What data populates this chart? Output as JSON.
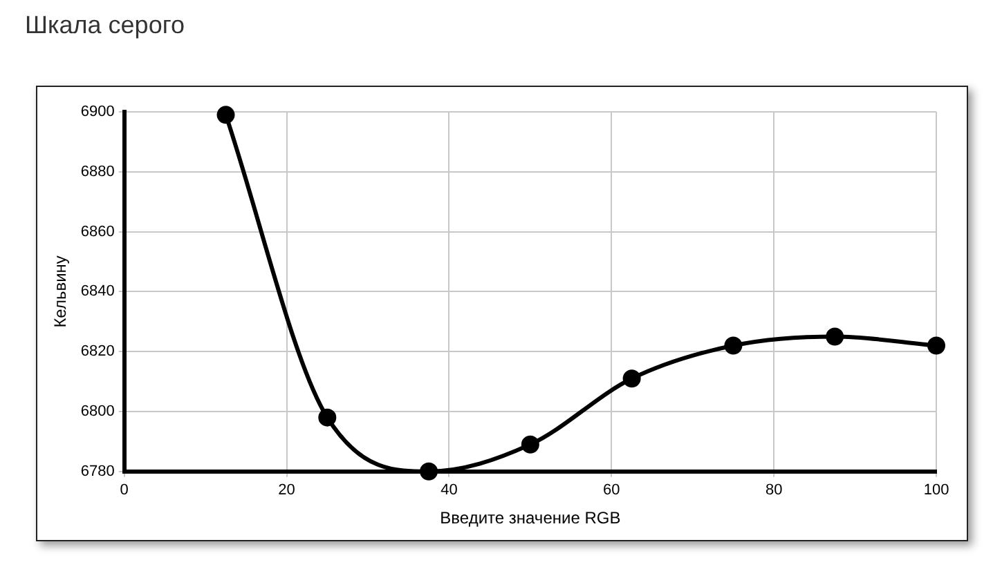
{
  "chart_data": {
    "type": "line",
    "title": "Шкала серого",
    "xlabel": "Введите значение RGB",
    "ylabel": "Кельвину",
    "x": [
      12.5,
      25,
      37.5,
      50,
      62.5,
      75,
      87.5,
      100
    ],
    "series": [
      {
        "color": "#000000",
        "values": [
          6899,
          6798,
          6780,
          6789,
          6811,
          6822,
          6825,
          6822
        ]
      }
    ],
    "xlim": [
      0,
      100
    ],
    "xticks": [
      0,
      20,
      40,
      60,
      80,
      100
    ],
    "ylim": [
      6780,
      6900
    ],
    "yticks": [
      6780,
      6800,
      6820,
      6840,
      6860,
      6880,
      6900
    ],
    "grid": true,
    "legend": false,
    "marker": "circle",
    "line_style": "solid"
  }
}
